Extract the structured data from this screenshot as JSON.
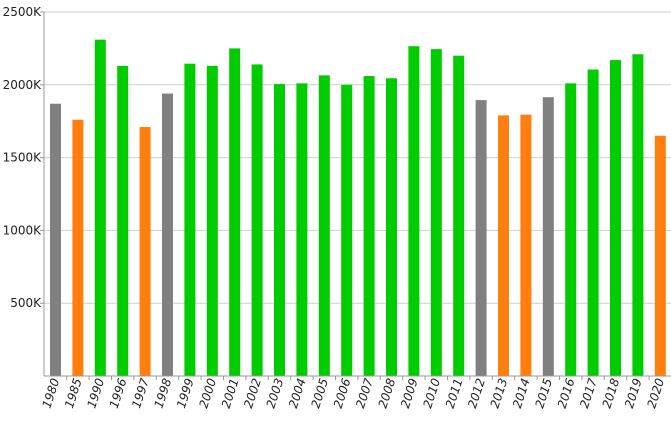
{
  "chart_data": {
    "type": "bar",
    "title": "",
    "xlabel": "",
    "ylabel": "",
    "ylim": [
      0,
      2500000
    ],
    "yticks": [
      {
        "value": 500000,
        "label": "500K"
      },
      {
        "value": 1000000,
        "label": "1000K"
      },
      {
        "value": 1500000,
        "label": "1500K"
      },
      {
        "value": 2000000,
        "label": "2000K"
      },
      {
        "value": 2500000,
        "label": "2500K"
      }
    ],
    "grid": true,
    "legend": "none",
    "colors": {
      "green": "#00cc00",
      "orange": "#ff7f0e",
      "gray": "#808080"
    },
    "categories": [
      "1980",
      "1985",
      "1990",
      "1996",
      "1997",
      "1998",
      "1999",
      "2000",
      "2001",
      "2002",
      "2003",
      "2004",
      "2005",
      "2006",
      "2007",
      "2008",
      "2009",
      "2010",
      "2011",
      "2012",
      "2013",
      "2014",
      "2015",
      "2016",
      "2017",
      "2018",
      "2019",
      "2020"
    ],
    "values": [
      1870000,
      1760000,
      2310000,
      2130000,
      1710000,
      1940000,
      2145000,
      2130000,
      2250000,
      2140000,
      2005000,
      2010000,
      2065000,
      2000000,
      2060000,
      2045000,
      2265000,
      2245000,
      2200000,
      1895000,
      1790000,
      1795000,
      1915000,
      2010000,
      2105000,
      2170000,
      2210000,
      1650000
    ],
    "bar_colors": [
      "gray",
      "orange",
      "green",
      "green",
      "orange",
      "gray",
      "green",
      "green",
      "green",
      "green",
      "green",
      "green",
      "green",
      "green",
      "green",
      "green",
      "green",
      "green",
      "green",
      "gray",
      "orange",
      "orange",
      "gray",
      "green",
      "green",
      "green",
      "green",
      "orange"
    ]
  }
}
